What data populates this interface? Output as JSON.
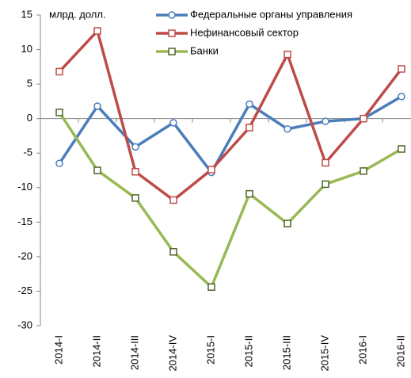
{
  "chart_data": {
    "type": "line",
    "y_label": "млрд. долл.",
    "categories": [
      "2014-I",
      "2014-II",
      "2014-III",
      "2014-IV",
      "2015-I",
      "2015-II",
      "2015-III",
      "2015-IV",
      "2016-I",
      "2016-II"
    ],
    "series": [
      {
        "name": "Федеральные органы управления",
        "color": "#4a7ebb",
        "marker": "circle",
        "values": [
          -6.5,
          1.8,
          -4.1,
          -0.6,
          -7.8,
          2.1,
          -1.5,
          -0.4,
          0,
          3.2
        ]
      },
      {
        "name": "Нефинансовый сектор",
        "color": "#be4b48",
        "marker": "square",
        "values": [
          6.8,
          12.7,
          -7.7,
          -11.8,
          -7.4,
          -1.3,
          9.3,
          -6.4,
          0,
          7.2
        ]
      },
      {
        "name": "Банки",
        "color": "#98b954",
        "marker": "square",
        "values": [
          0.9,
          -7.5,
          -11.5,
          -19.3,
          -24.4,
          -10.9,
          -15.2,
          -9.5,
          -7.6,
          -4.4
        ]
      }
    ],
    "ylim": [
      -30,
      15
    ],
    "yticks": [
      -30,
      -25,
      -20,
      -15,
      -10,
      -5,
      0,
      5,
      10,
      15
    ],
    "grid": false
  }
}
